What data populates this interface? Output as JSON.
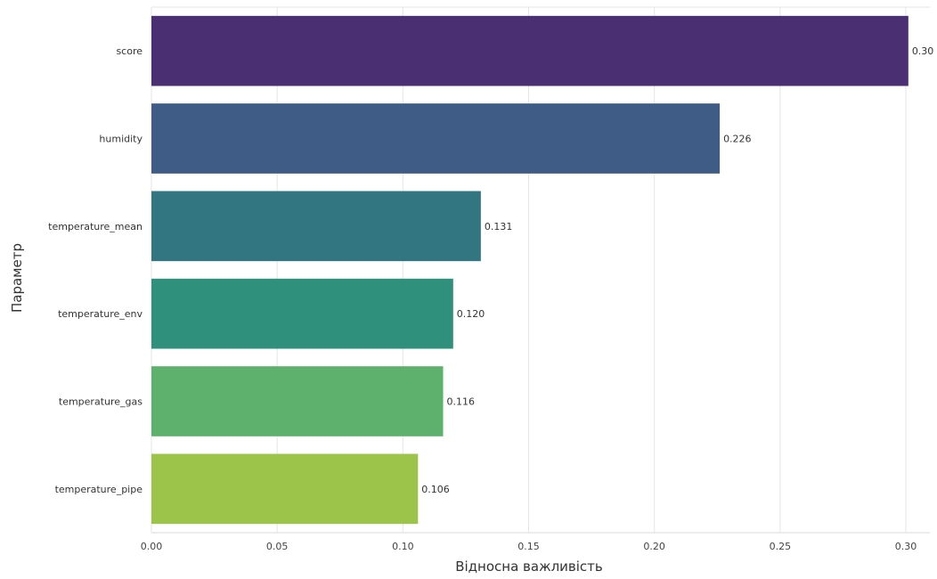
{
  "chart_data": {
    "type": "bar",
    "orientation": "horizontal",
    "title": "",
    "xlabel": "Відносна важливість",
    "ylabel": "Параметр",
    "xlim": [
      0,
      0.31
    ],
    "xticks": [
      0.0,
      0.05,
      0.1,
      0.15,
      0.2,
      0.25,
      0.3
    ],
    "xtick_labels": [
      "0.00",
      "0.05",
      "0.10",
      "0.15",
      "0.20",
      "0.25",
      "0.30"
    ],
    "grid": "vertical",
    "categories": [
      "score",
      "humidity",
      "temperature_mean",
      "temperature_env",
      "temperature_gas",
      "temperature_pipe"
    ],
    "values": [
      0.301,
      0.226,
      0.131,
      0.12,
      0.116,
      0.106
    ],
    "value_labels": [
      "0.30",
      "0.226",
      "0.131",
      "0.120",
      "0.116",
      "0.106"
    ],
    "colors": [
      "#4b2f73",
      "#3f5c86",
      "#327682",
      "#2f917c",
      "#5db16d",
      "#9dc44a"
    ]
  }
}
